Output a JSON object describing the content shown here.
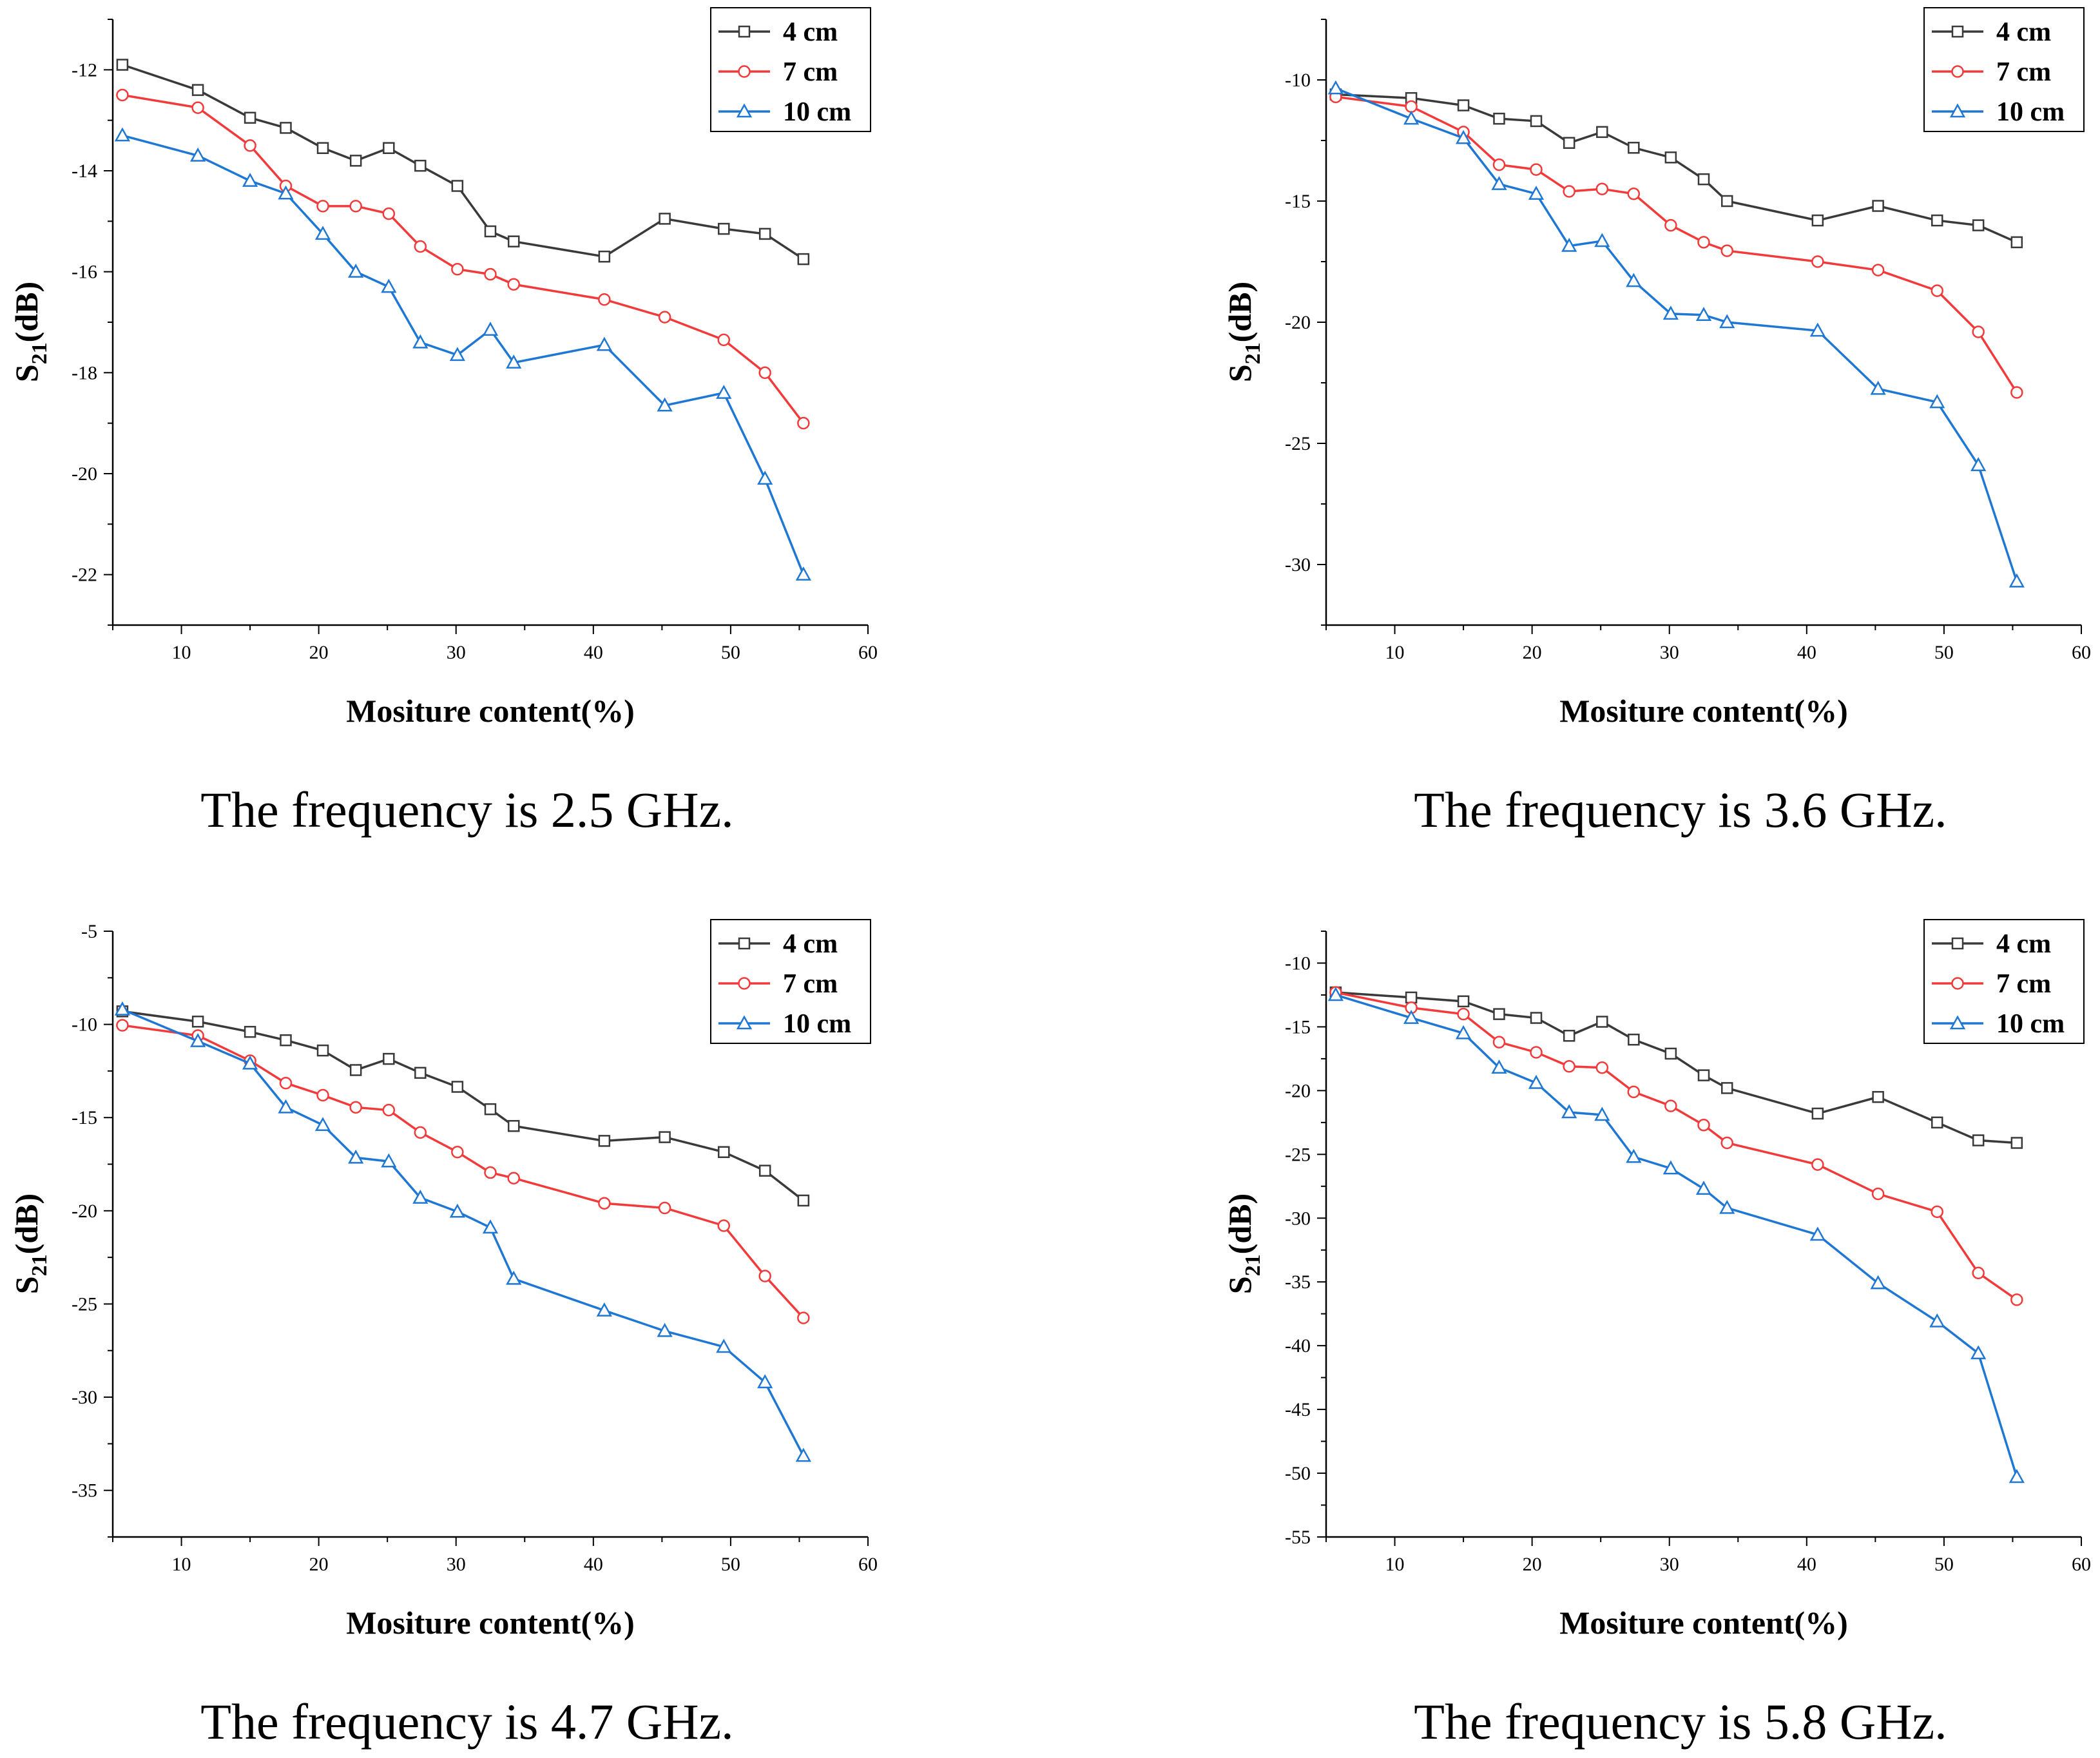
{
  "colors": {
    "4 cm": "#3a3a3a",
    "7 cm": "#f23a3a",
    "10 cm": "#1f77d4"
  },
  "chart_data": [
    {
      "type": "line",
      "caption": "The frequency is 2.5 GHz.",
      "xlabel": "Mositure content(%)",
      "ylabel_main": "S",
      "ylabel_sub": "21",
      "ylabel_tail": "(dB)",
      "xlim": [
        5,
        60
      ],
      "ylim": [
        -23,
        -11
      ],
      "xticks": [
        10,
        20,
        30,
        40,
        50,
        60
      ],
      "yticks": [
        -22,
        -20,
        -18,
        -16,
        -14,
        -12
      ],
      "x": [
        5.7,
        11.2,
        15,
        17.6,
        20.3,
        22.7,
        25.1,
        27.4,
        30.1,
        32.5,
        34.2,
        40.8,
        45.2,
        49.5,
        52.5,
        55.3
      ],
      "series": [
        {
          "name": "4 cm",
          "marker": "square",
          "values": [
            -11.9,
            -12.4,
            -12.95,
            -13.15,
            -13.55,
            -13.8,
            -13.55,
            -13.9,
            -14.3,
            -15.2,
            -15.4,
            -15.7,
            -14.95,
            -15.15,
            -15.25,
            -15.75
          ]
        },
        {
          "name": "7 cm",
          "marker": "circle",
          "values": [
            -12.5,
            -12.75,
            -13.5,
            -14.3,
            -14.7,
            -14.7,
            -14.85,
            -15.5,
            -15.95,
            -16.05,
            -16.25,
            -16.55,
            -16.9,
            -17.35,
            -18,
            -19
          ]
        },
        {
          "name": "10 cm",
          "marker": "triangle",
          "values": [
            -13.3,
            -13.7,
            -14.2,
            -14.45,
            -15.25,
            -16,
            -16.3,
            -17.4,
            -17.65,
            -17.15,
            -17.8,
            -17.45,
            -18.65,
            -18.4,
            -20.1,
            -22
          ]
        }
      ]
    },
    {
      "type": "line",
      "caption": "The frequency is 3.6 GHz.",
      "xlabel": "Mositure content(%)",
      "ylabel_main": "S",
      "ylabel_sub": "21",
      "ylabel_tail": "(dB)",
      "xlim": [
        5,
        60
      ],
      "ylim": [
        -32.5,
        -7.5
      ],
      "xticks": [
        10,
        20,
        30,
        40,
        50,
        60
      ],
      "yticks": [
        -30,
        -25,
        -20,
        -15,
        -10
      ],
      "x": [
        5.7,
        11.2,
        15,
        17.6,
        20.3,
        22.7,
        25.1,
        27.4,
        30.1,
        32.5,
        34.2,
        40.8,
        45.2,
        49.5,
        52.5,
        55.3
      ],
      "series": [
        {
          "name": "4 cm",
          "marker": "square",
          "values": [
            -10.6,
            -10.75,
            -11.05,
            -11.6,
            -11.7,
            -12.6,
            -12.15,
            -12.8,
            -13.2,
            -14.1,
            -15,
            -15.8,
            -15.2,
            -15.8,
            -16,
            -16.7
          ]
        },
        {
          "name": "7 cm",
          "marker": "circle",
          "values": [
            -10.7,
            -11.1,
            -12.15,
            -13.5,
            -13.7,
            -14.6,
            -14.5,
            -14.7,
            -16,
            -16.7,
            -17.05,
            -17.5,
            -17.85,
            -18.7,
            -20.4,
            -22.9
          ]
        },
        {
          "name": "10 cm",
          "marker": "triangle",
          "values": [
            -10.35,
            -11.6,
            -12.4,
            -14.3,
            -14.7,
            -16.85,
            -16.65,
            -18.3,
            -19.65,
            -19.7,
            -20,
            -20.35,
            -22.75,
            -23.3,
            -25.9,
            -30.7
          ]
        }
      ]
    },
    {
      "type": "line",
      "caption": "The frequency is 4.7 GHz.",
      "xlabel": "Mositure content(%)",
      "ylabel_main": "S",
      "ylabel_sub": "21",
      "ylabel_tail": "(dB)",
      "xlim": [
        5,
        60
      ],
      "ylim": [
        -37.5,
        -5
      ],
      "xticks": [
        10,
        20,
        30,
        40,
        50,
        60
      ],
      "yticks": [
        -35,
        -30,
        -25,
        -20,
        -15,
        -10,
        -5
      ],
      "x": [
        5.7,
        11.2,
        15,
        17.6,
        20.3,
        22.7,
        25.1,
        27.4,
        30.1,
        32.5,
        34.2,
        40.8,
        45.2,
        49.5,
        52.5,
        55.3
      ],
      "series": [
        {
          "name": "4 cm",
          "marker": "square",
          "values": [
            -9.3,
            -9.85,
            -10.4,
            -10.85,
            -11.4,
            -12.45,
            -11.85,
            -12.6,
            -13.35,
            -14.55,
            -15.45,
            -16.25,
            -16.05,
            -16.85,
            -17.85,
            -19.45
          ]
        },
        {
          "name": "7 cm",
          "marker": "circle",
          "values": [
            -10.05,
            -10.6,
            -11.95,
            -13.15,
            -13.8,
            -14.45,
            -14.6,
            -15.8,
            -16.85,
            -17.95,
            -18.25,
            -19.6,
            -19.85,
            -20.8,
            -23.5,
            -25.75
          ]
        },
        {
          "name": "10 cm",
          "marker": "triangle",
          "values": [
            -9.2,
            -10.9,
            -12.1,
            -14.45,
            -15.4,
            -17.15,
            -17.35,
            -19.3,
            -20.05,
            -20.9,
            -23.65,
            -25.35,
            -26.45,
            -27.3,
            -29.2,
            -33.15
          ]
        }
      ]
    },
    {
      "type": "line",
      "caption": "The frequency is 5.8 GHz.",
      "xlabel": "Mositure content(%)",
      "ylabel_main": "S",
      "ylabel_sub": "21",
      "ylabel_tail": "(dB)",
      "xlim": [
        5,
        60
      ],
      "ylim": [
        -55,
        -7.5
      ],
      "xticks": [
        10,
        20,
        30,
        40,
        50,
        60
      ],
      "yticks": [
        -55,
        -50,
        -45,
        -40,
        -35,
        -30,
        -25,
        -20,
        -15,
        -10
      ],
      "x": [
        5.7,
        11.2,
        15,
        17.6,
        20.3,
        22.7,
        25.1,
        27.4,
        30.1,
        32.5,
        34.2,
        40.8,
        45.2,
        49.5,
        52.5,
        55.3
      ],
      "series": [
        {
          "name": "4 cm",
          "marker": "square",
          "values": [
            -12.3,
            -12.7,
            -13,
            -14,
            -14.3,
            -15.7,
            -14.6,
            -16,
            -17.1,
            -18.8,
            -19.8,
            -21.8,
            -20.5,
            -22.5,
            -23.9,
            -24.1
          ]
        },
        {
          "name": "7 cm",
          "marker": "circle",
          "values": [
            -12.3,
            -13.5,
            -14,
            -16.2,
            -17,
            -18.1,
            -18.2,
            -20.1,
            -21.2,
            -22.7,
            -24.1,
            -25.8,
            -28.1,
            -29.5,
            -34.3,
            -36.4
          ]
        },
        {
          "name": "10 cm",
          "marker": "triangle",
          "values": [
            -12.5,
            -14.3,
            -15.5,
            -18.2,
            -19.4,
            -21.7,
            -21.9,
            -25.2,
            -26.1,
            -27.7,
            -29.2,
            -31.3,
            -35.1,
            -38.1,
            -40.6,
            -50.3
          ]
        }
      ]
    }
  ]
}
